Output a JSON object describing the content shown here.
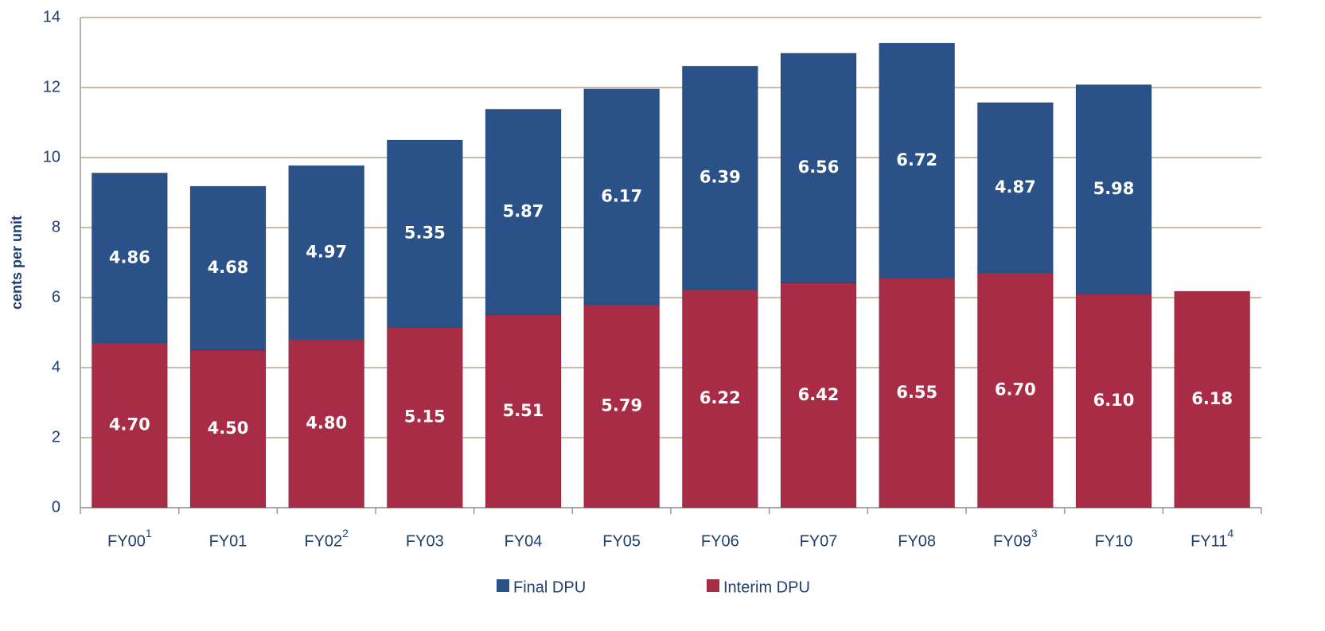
{
  "chart_data": {
    "type": "stacked-bar",
    "y_label": "cents per unit",
    "categories": [
      "FY00",
      "FY01",
      "FY02",
      "FY03",
      "FY04",
      "FY05",
      "FY06",
      "FY07",
      "FY08",
      "FY09",
      "FY10",
      "FY11"
    ],
    "category_superscripts": [
      "1",
      null,
      "2",
      null,
      null,
      null,
      null,
      null,
      null,
      "3",
      null,
      "4"
    ],
    "series": [
      {
        "name": "Final DPU",
        "color": "#2a5288",
        "stack_position": "top",
        "values": [
          4.86,
          4.68,
          4.97,
          5.35,
          5.87,
          6.17,
          6.39,
          6.56,
          6.72,
          4.87,
          5.98,
          null
        ],
        "value_labels": [
          "4.86",
          "4.68",
          "4.97",
          "5.35",
          "5.87",
          "6.17",
          "6.39",
          "6.56",
          "6.72",
          "4.87",
          "5.98",
          null
        ]
      },
      {
        "name": "Interim DPU",
        "color": "#a82c46",
        "stack_position": "bottom",
        "values": [
          4.7,
          4.5,
          4.8,
          5.15,
          5.51,
          5.79,
          6.22,
          6.42,
          6.55,
          6.7,
          6.1,
          6.18
        ],
        "value_labels": [
          "4.70",
          "4.50",
          "4.80",
          "5.15",
          "5.51",
          "5.79",
          "6.22",
          "6.42",
          "6.55",
          "6.70",
          "6.10",
          "6.18"
        ]
      }
    ],
    "ylim": [
      0,
      14
    ],
    "yticks": [
      0,
      2,
      4,
      6,
      8,
      10,
      12,
      14
    ],
    "grid": true,
    "legend": "bottom"
  }
}
